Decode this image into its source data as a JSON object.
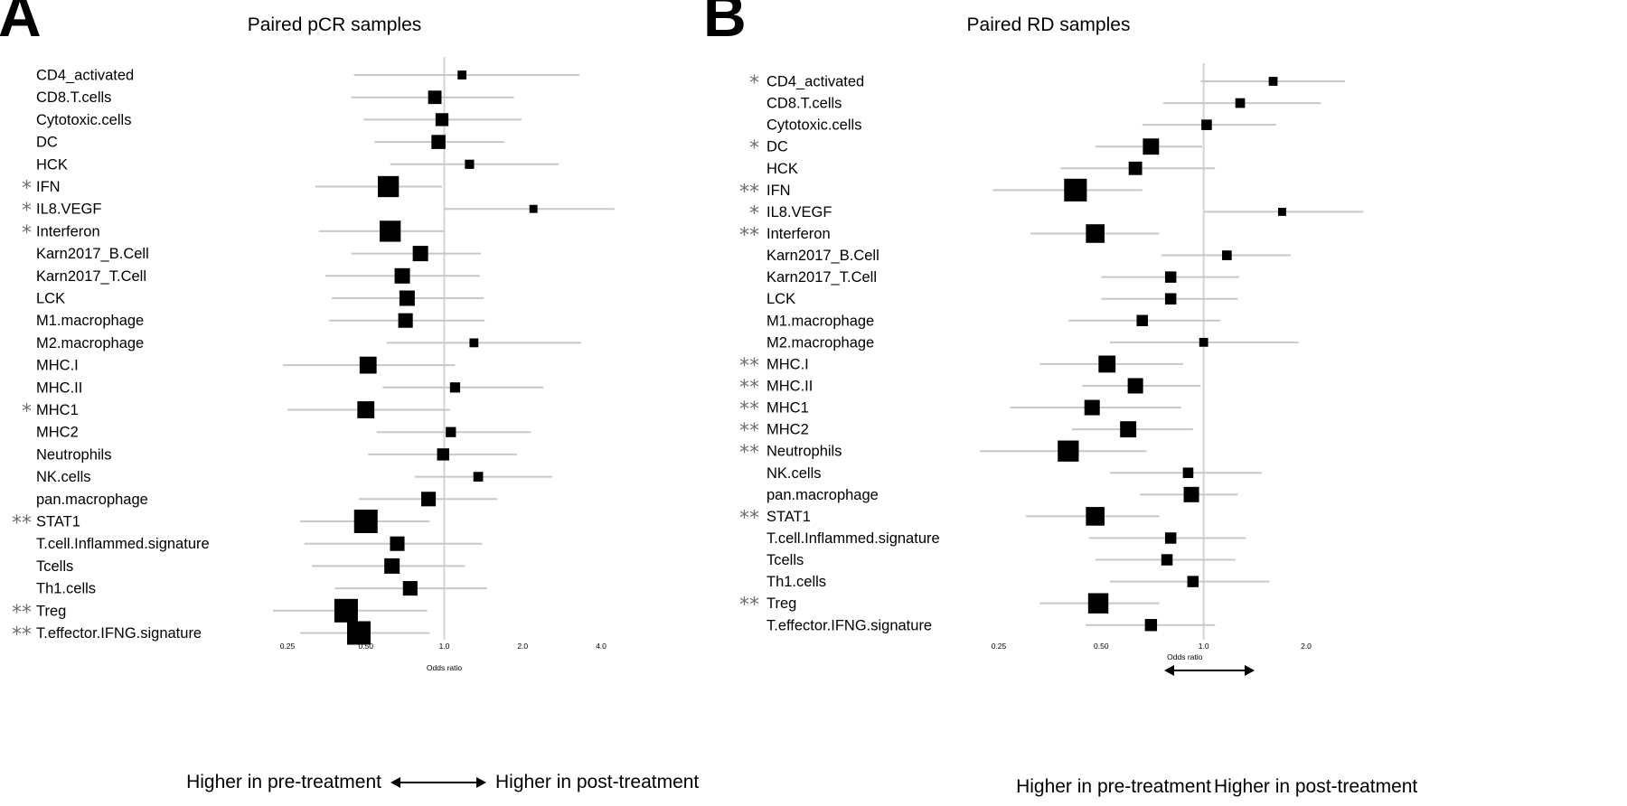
{
  "chart_data": [
    {
      "type": "forest",
      "panel_label": "A",
      "title": "Paired pCR samples",
      "xlabel": "Odds ratio",
      "x_scale": "log2",
      "ticks": [
        0.25,
        0.5,
        1.0,
        2.0,
        4.0
      ],
      "tick_labels": [
        "0.25",
        "0.50",
        "1.0",
        "2.0",
        "4.0"
      ],
      "reference_line": 1.0,
      "direction_left": "Higher in pre-treatment",
      "direction_right": "Higher in post-treatment",
      "rows": [
        {
          "label": "CD4_activated",
          "sig": "",
          "or": 1.17,
          "lo": 0.45,
          "hi": 3.3,
          "weight": 0.1
        },
        {
          "label": "CD8.T.cells",
          "sig": "",
          "or": 0.92,
          "lo": 0.44,
          "hi": 1.85,
          "weight": 0.38
        },
        {
          "label": "Cytotoxic.cells",
          "sig": "",
          "or": 0.98,
          "lo": 0.49,
          "hi": 1.98,
          "weight": 0.35
        },
        {
          "label": "DC",
          "sig": "",
          "or": 0.95,
          "lo": 0.54,
          "hi": 1.7,
          "weight": 0.42
        },
        {
          "label": "HCK",
          "sig": "",
          "or": 1.25,
          "lo": 0.62,
          "hi": 2.75,
          "weight": 0.12
        },
        {
          "label": "IFN",
          "sig": "*",
          "or": 0.61,
          "lo": 0.32,
          "hi": 0.98,
          "weight": 0.85
        },
        {
          "label": "IL8.VEGF",
          "sig": "*",
          "or": 2.2,
          "lo": 1.0,
          "hi": 4.5,
          "weight": 0.05
        },
        {
          "label": "Interferon",
          "sig": "*",
          "or": 0.62,
          "lo": 0.33,
          "hi": 1.0,
          "weight": 0.85
        },
        {
          "label": "Karn2017_B.Cell",
          "sig": "",
          "or": 0.81,
          "lo": 0.44,
          "hi": 1.38,
          "weight": 0.5
        },
        {
          "label": "Karn2017_T.Cell",
          "sig": "",
          "or": 0.69,
          "lo": 0.35,
          "hi": 1.37,
          "weight": 0.5
        },
        {
          "label": "LCK",
          "sig": "",
          "or": 0.72,
          "lo": 0.37,
          "hi": 1.42,
          "weight": 0.5
        },
        {
          "label": "M1.macrophage",
          "sig": "",
          "or": 0.71,
          "lo": 0.36,
          "hi": 1.43,
          "weight": 0.45
        },
        {
          "label": "M2.macrophage",
          "sig": "",
          "or": 1.3,
          "lo": 0.6,
          "hi": 3.35,
          "weight": 0.1
        },
        {
          "label": "MHC.I",
          "sig": "",
          "or": 0.51,
          "lo": 0.24,
          "hi": 1.1,
          "weight": 0.6
        },
        {
          "label": "MHC.II",
          "sig": "",
          "or": 1.1,
          "lo": 0.58,
          "hi": 2.4,
          "weight": 0.18
        },
        {
          "label": "MHC1",
          "sig": "*",
          "or": 0.5,
          "lo": 0.25,
          "hi": 1.05,
          "weight": 0.6
        },
        {
          "label": "MHC2",
          "sig": "",
          "or": 1.06,
          "lo": 0.55,
          "hi": 2.15,
          "weight": 0.18
        },
        {
          "label": "Neutrophils",
          "sig": "",
          "or": 0.99,
          "lo": 0.51,
          "hi": 1.9,
          "weight": 0.3
        },
        {
          "label": "NK.cells",
          "sig": "",
          "or": 1.35,
          "lo": 0.77,
          "hi": 2.6,
          "weight": 0.15
        },
        {
          "label": "pan.macrophage",
          "sig": "",
          "or": 0.87,
          "lo": 0.47,
          "hi": 1.6,
          "weight": 0.45
        },
        {
          "label": "STAT1",
          "sig": "**",
          "or": 0.5,
          "lo": 0.28,
          "hi": 0.88,
          "weight": 1.0
        },
        {
          "label": "T.cell.Inflammed.signature",
          "sig": "",
          "or": 0.66,
          "lo": 0.29,
          "hi": 1.4,
          "weight": 0.45
        },
        {
          "label": "Tcells",
          "sig": "",
          "or": 0.63,
          "lo": 0.31,
          "hi": 1.2,
          "weight": 0.5
        },
        {
          "label": "Th1.cells",
          "sig": "",
          "or": 0.74,
          "lo": 0.38,
          "hi": 1.46,
          "weight": 0.45
        },
        {
          "label": "Treg",
          "sig": "**",
          "or": 0.42,
          "lo": 0.22,
          "hi": 0.86,
          "weight": 1.0
        },
        {
          "label": "T.effector.IFNG.signature",
          "sig": "**",
          "or": 0.47,
          "lo": 0.28,
          "hi": 0.88,
          "weight": 1.0
        }
      ]
    },
    {
      "type": "forest",
      "panel_label": "B",
      "title": "Paired RD samples",
      "xlabel": "Odds ratio",
      "x_scale": "log2",
      "ticks": [
        0.25,
        0.5,
        1.0,
        2.0
      ],
      "tick_labels": [
        "0.25",
        "0.50",
        "1.0",
        "2.0"
      ],
      "reference_line": 1.0,
      "direction_left": "Higher in pre-treatment",
      "direction_right": "Higher in post-treatment",
      "rows": [
        {
          "label": "CD4_activated",
          "sig": "*",
          "or": 1.6,
          "lo": 0.98,
          "hi": 2.6,
          "weight": 0.1
        },
        {
          "label": "CD8.T.cells",
          "sig": "",
          "or": 1.28,
          "lo": 0.76,
          "hi": 2.21,
          "weight": 0.15
        },
        {
          "label": "Cytotoxic.cells",
          "sig": "",
          "or": 1.02,
          "lo": 0.66,
          "hi": 1.63,
          "weight": 0.2
        },
        {
          "label": "DC",
          "sig": "*",
          "or": 0.7,
          "lo": 0.48,
          "hi": 0.99,
          "weight": 0.55
        },
        {
          "label": "HCK",
          "sig": "",
          "or": 0.63,
          "lo": 0.38,
          "hi": 1.08,
          "weight": 0.38
        },
        {
          "label": "IFN",
          "sig": "**",
          "or": 0.42,
          "lo": 0.24,
          "hi": 0.66,
          "weight": 0.95
        },
        {
          "label": "IL8.VEGF",
          "sig": "*",
          "or": 1.7,
          "lo": 1.0,
          "hi": 2.95,
          "weight": 0.05
        },
        {
          "label": "Interferon",
          "sig": "**",
          "or": 0.48,
          "lo": 0.31,
          "hi": 0.74,
          "weight": 0.7
        },
        {
          "label": "Karn2017_B.Cell",
          "sig": "",
          "or": 1.17,
          "lo": 0.75,
          "hi": 1.8,
          "weight": 0.15
        },
        {
          "label": "Karn2017_T.Cell",
          "sig": "",
          "or": 0.8,
          "lo": 0.5,
          "hi": 1.27,
          "weight": 0.25
        },
        {
          "label": "LCK",
          "sig": "",
          "or": 0.8,
          "lo": 0.5,
          "hi": 1.26,
          "weight": 0.25
        },
        {
          "label": "M1.macrophage",
          "sig": "",
          "or": 0.66,
          "lo": 0.4,
          "hi": 1.12,
          "weight": 0.25
        },
        {
          "label": "M2.macrophage",
          "sig": "",
          "or": 1.0,
          "lo": 0.53,
          "hi": 1.9,
          "weight": 0.1
        },
        {
          "label": "MHC.I",
          "sig": "**",
          "or": 0.52,
          "lo": 0.33,
          "hi": 0.87,
          "weight": 0.6
        },
        {
          "label": "MHC.II",
          "sig": "**",
          "or": 0.63,
          "lo": 0.44,
          "hi": 0.98,
          "weight": 0.5
        },
        {
          "label": "MHC1",
          "sig": "**",
          "or": 0.47,
          "lo": 0.27,
          "hi": 0.86,
          "weight": 0.5
        },
        {
          "label": "MHC2",
          "sig": "**",
          "or": 0.6,
          "lo": 0.41,
          "hi": 0.93,
          "weight": 0.55
        },
        {
          "label": "Neutrophils",
          "sig": "**",
          "or": 0.4,
          "lo": 0.22,
          "hi": 0.68,
          "weight": 0.85
        },
        {
          "label": "NK.cells",
          "sig": "",
          "or": 0.9,
          "lo": 0.53,
          "hi": 1.48,
          "weight": 0.2
        },
        {
          "label": "pan.macrophage",
          "sig": "",
          "or": 0.92,
          "lo": 0.65,
          "hi": 1.26,
          "weight": 0.5
        },
        {
          "label": "STAT1",
          "sig": "**",
          "or": 0.48,
          "lo": 0.3,
          "hi": 0.74,
          "weight": 0.7
        },
        {
          "label": "T.cell.Inflammed.signature",
          "sig": "",
          "or": 0.8,
          "lo": 0.46,
          "hi": 1.33,
          "weight": 0.25
        },
        {
          "label": "Tcells",
          "sig": "",
          "or": 0.78,
          "lo": 0.48,
          "hi": 1.24,
          "weight": 0.25
        },
        {
          "label": "Th1.cells",
          "sig": "",
          "or": 0.93,
          "lo": 0.53,
          "hi": 1.56,
          "weight": 0.25
        },
        {
          "label": "Treg",
          "sig": "**",
          "or": 0.49,
          "lo": 0.33,
          "hi": 0.74,
          "weight": 0.8
        },
        {
          "label": "T.effector.IFNG.signature",
          "sig": "",
          "or": 0.7,
          "lo": 0.45,
          "hi": 1.08,
          "weight": 0.3
        }
      ]
    }
  ]
}
